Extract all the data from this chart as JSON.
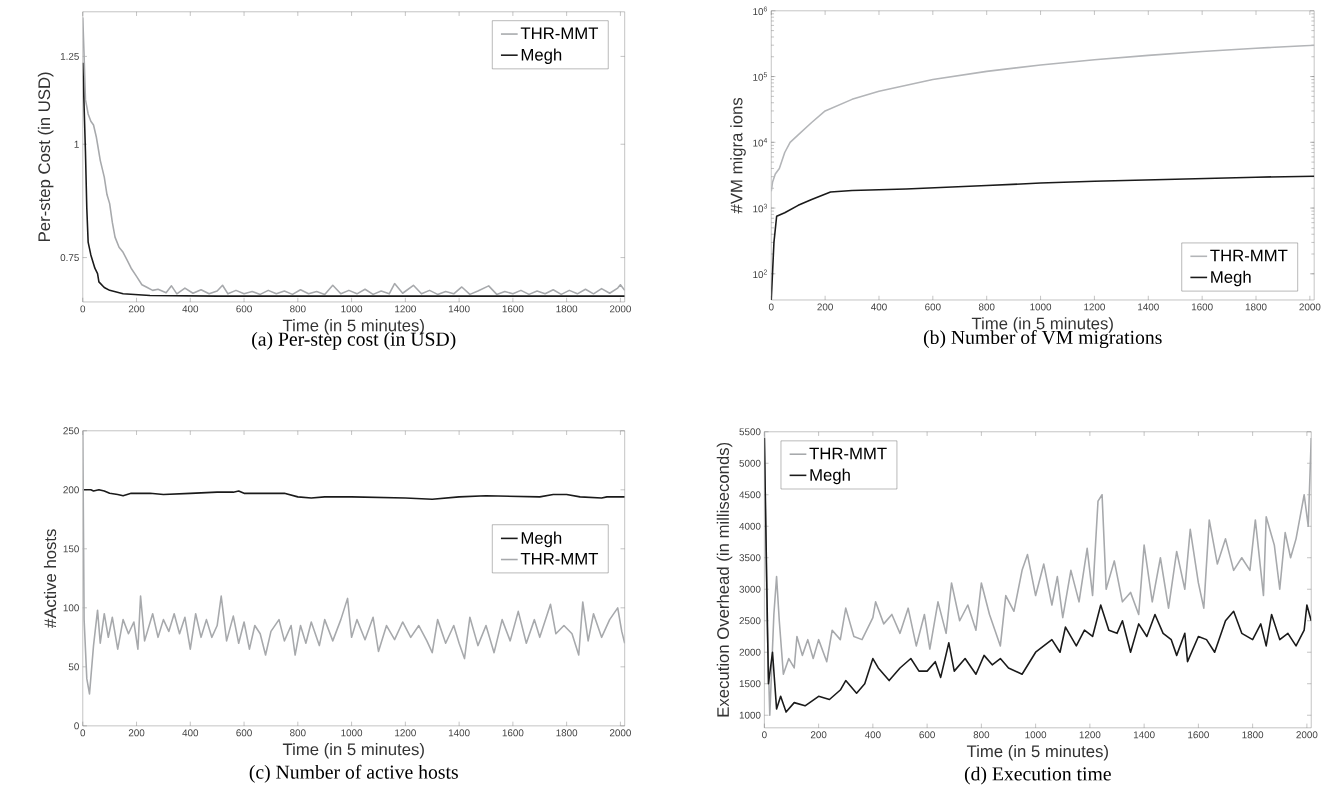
{
  "chart_data": [
    {
      "type": "line",
      "title": "(a) Per-step cost (in USD)",
      "xlabel": "Time (in 5 minutes)",
      "ylabel": "Per-step Cost (in USD)",
      "log": true,
      "legend": "top right",
      "xlim": [
        0,
        2016
      ],
      "ylim": [
        0.67,
        1.4
      ],
      "xticks": [
        0,
        200,
        400,
        600,
        800,
        1000,
        1200,
        1400,
        1600,
        1800,
        2000
      ],
      "yticks": [
        0.75,
        1,
        1.25
      ],
      "series": [
        {
          "name": "THR-MMT",
          "color": "#a7a9ac",
          "x": [
            0,
            5,
            10,
            20,
            30,
            40,
            50,
            55,
            65,
            80,
            90,
            100,
            110,
            120,
            135,
            150,
            165,
            180,
            200,
            220,
            240,
            260,
            280,
            310,
            330,
            350,
            380,
            410,
            440,
            470,
            500,
            520,
            540,
            570,
            600,
            630,
            660,
            690,
            720,
            750,
            780,
            810,
            840,
            870,
            900,
            930,
            960,
            990,
            1020,
            1050,
            1080,
            1110,
            1140,
            1160,
            1190,
            1230,
            1260,
            1290,
            1320,
            1350,
            1380,
            1410,
            1440,
            1470,
            1510,
            1540,
            1570,
            1600,
            1630,
            1660,
            1690,
            1720,
            1750,
            1780,
            1810,
            1840,
            1870,
            1900,
            1930,
            1960,
            1990,
            2000,
            2016
          ],
          "values": [
            1.38,
            1.25,
            1.12,
            1.08,
            1.06,
            1.05,
            1.02,
            1.0,
            0.96,
            0.92,
            0.88,
            0.86,
            0.82,
            0.79,
            0.77,
            0.76,
            0.745,
            0.73,
            0.715,
            0.7,
            0.695,
            0.69,
            0.692,
            0.686,
            0.698,
            0.684,
            0.694,
            0.685,
            0.691,
            0.684,
            0.689,
            0.699,
            0.684,
            0.69,
            0.684,
            0.688,
            0.683,
            0.69,
            0.684,
            0.689,
            0.683,
            0.691,
            0.684,
            0.688,
            0.683,
            0.699,
            0.684,
            0.69,
            0.684,
            0.692,
            0.683,
            0.689,
            0.684,
            0.702,
            0.685,
            0.699,
            0.684,
            0.69,
            0.683,
            0.688,
            0.684,
            0.696,
            0.683,
            0.689,
            0.698,
            0.683,
            0.688,
            0.684,
            0.69,
            0.683,
            0.689,
            0.684,
            0.691,
            0.683,
            0.69,
            0.684,
            0.692,
            0.684,
            0.693,
            0.685,
            0.694,
            0.7,
            0.69
          ]
        },
        {
          "name": "Megh",
          "color": "#1a1a1a",
          "x": [
            0,
            5,
            10,
            15,
            20,
            30,
            45,
            55,
            60,
            80,
            100,
            150,
            250,
            500,
            1000,
            1500,
            2016
          ],
          "values": [
            1.23,
            1.1,
            0.98,
            0.85,
            0.78,
            0.755,
            0.73,
            0.72,
            0.705,
            0.695,
            0.69,
            0.684,
            0.681,
            0.68,
            0.68,
            0.68,
            0.68
          ]
        }
      ]
    },
    {
      "type": "line",
      "title": "(b) Number of VM migrations",
      "xlabel": "Time (in 5 minutes)",
      "ylabel": "#VM migra ions",
      "log": true,
      "legend": "bottom right",
      "xlim": [
        0,
        2016
      ],
      "ylim": [
        40,
        1000000
      ],
      "xticks": [
        0,
        200,
        400,
        600,
        800,
        1000,
        1200,
        1400,
        1600,
        1800,
        2000
      ],
      "yticks": [
        {
          "value": 100,
          "label": "10$^{2}$"
        },
        {
          "value": 1000,
          "label": "10$^{3}$"
        },
        {
          "value": 10000,
          "label": "10$^{4}$"
        },
        {
          "value": 100000,
          "label": "10$^{5}$"
        },
        {
          "value": 1000000,
          "label": "10$^{6}$"
        }
      ],
      "series": [
        {
          "name": "THR-MMT",
          "color": "#b3b5b8",
          "x": [
            0,
            5,
            15,
            30,
            50,
            70,
            100,
            150,
            200,
            300,
            400,
            600,
            800,
            1000,
            1200,
            1400,
            1600,
            1800,
            2016
          ],
          "values": [
            1800,
            2500,
            3300,
            4000,
            7000,
            10000,
            13000,
            20000,
            30000,
            45000,
            60000,
            90000,
            120000,
            150000,
            180000,
            210000,
            240000,
            270000,
            300000
          ]
        },
        {
          "name": "Megh",
          "color": "#1a1a1a",
          "x": [
            0,
            10,
            20,
            50,
            100,
            150,
            220,
            300,
            500,
            800,
            1000,
            1200,
            1500,
            1800,
            2016
          ],
          "values": [
            40,
            300,
            750,
            850,
            1100,
            1350,
            1750,
            1850,
            1950,
            2200,
            2400,
            2550,
            2750,
            2950,
            3050
          ]
        }
      ]
    },
    {
      "type": "line",
      "title": "(c) Number of active hosts",
      "xlabel": "Time (in 5 minutes)",
      "ylabel": "#Active hosts",
      "legend": "right",
      "xlim": [
        0,
        2016
      ],
      "ylim": [
        0,
        250
      ],
      "xticks": [
        0,
        200,
        400,
        600,
        800,
        1000,
        1200,
        1400,
        1600,
        1800,
        2000
      ],
      "yticks": [
        0,
        50,
        100,
        150,
        200,
        250
      ],
      "series": [
        {
          "name": "Megh",
          "color": "#1a1a1a",
          "x": [
            0,
            30,
            40,
            60,
            80,
            100,
            130,
            150,
            180,
            250,
            300,
            400,
            500,
            560,
            580,
            600,
            750,
            800,
            850,
            900,
            1000,
            1200,
            1300,
            1400,
            1500,
            1700,
            1750,
            1800,
            1850,
            1930,
            1950,
            2016
          ],
          "values": [
            200,
            200,
            199,
            200,
            199,
            197,
            196,
            195,
            197,
            197,
            196,
            197,
            198,
            198,
            199,
            197,
            197,
            194,
            193,
            194,
            194,
            193,
            192,
            194,
            195,
            194,
            196,
            196,
            194,
            193,
            194,
            194
          ]
        },
        {
          "name": "THR-MMT",
          "color": "#a7a9ac",
          "x": [
            0,
            5,
            15,
            25,
            40,
            55,
            65,
            80,
            95,
            110,
            130,
            150,
            170,
            190,
            205,
            215,
            230,
            260,
            280,
            300,
            320,
            340,
            360,
            380,
            400,
            420,
            440,
            460,
            480,
            500,
            515,
            535,
            560,
            580,
            600,
            620,
            640,
            660,
            680,
            700,
            730,
            750,
            775,
            790,
            810,
            830,
            850,
            880,
            900,
            930,
            960,
            985,
            1000,
            1020,
            1050,
            1080,
            1100,
            1130,
            1160,
            1190,
            1220,
            1250,
            1280,
            1300,
            1320,
            1350,
            1380,
            1400,
            1420,
            1440,
            1470,
            1500,
            1530,
            1560,
            1590,
            1620,
            1650,
            1680,
            1700,
            1740,
            1760,
            1790,
            1820,
            1845,
            1860,
            1880,
            1900,
            1930,
            1960,
            1990,
            2005,
            2016
          ],
          "values": [
            250,
            90,
            40,
            27,
            68,
            98,
            70,
            95,
            75,
            92,
            65,
            90,
            78,
            88,
            65,
            110,
            72,
            95,
            75,
            90,
            80,
            95,
            78,
            92,
            65,
            95,
            75,
            90,
            75,
            85,
            110,
            72,
            93,
            70,
            88,
            65,
            85,
            78,
            60,
            80,
            90,
            72,
            85,
            60,
            85,
            70,
            88,
            68,
            90,
            72,
            90,
            108,
            75,
            90,
            73,
            92,
            63,
            85,
            73,
            88,
            75,
            85,
            72,
            62,
            90,
            70,
            85,
            70,
            57,
            92,
            68,
            85,
            62,
            90,
            72,
            97,
            70,
            90,
            75,
            103,
            78,
            85,
            78,
            60,
            105,
            72,
            95,
            75,
            90,
            100,
            80,
            70
          ]
        }
      ]
    },
    {
      "type": "line",
      "title": "(d) Execution time",
      "xlabel": "Time (in 5 minutes)",
      "ylabel": "Execution Overhead (in milliseconds)",
      "legend": "top left",
      "xlim": [
        0,
        2016
      ],
      "ylim": [
        800,
        5500
      ],
      "xticks": [
        0,
        200,
        400,
        600,
        800,
        1000,
        1200,
        1400,
        1600,
        1800,
        2000
      ],
      "yticks": [
        1000,
        1500,
        2000,
        2500,
        3000,
        3500,
        4000,
        4500,
        5000,
        5500
      ],
      "series": [
        {
          "name": "THR-MMT",
          "color": "#a7a9ac",
          "x": [
            0,
            10,
            20,
            35,
            45,
            55,
            70,
            90,
            110,
            120,
            140,
            160,
            180,
            200,
            230,
            250,
            280,
            300,
            330,
            360,
            400,
            410,
            440,
            470,
            500,
            530,
            560,
            590,
            610,
            640,
            670,
            690,
            720,
            750,
            780,
            800,
            830,
            870,
            890,
            920,
            950,
            970,
            1000,
            1030,
            1060,
            1080,
            1100,
            1130,
            1160,
            1190,
            1210,
            1230,
            1245,
            1260,
            1290,
            1320,
            1350,
            1380,
            1400,
            1430,
            1460,
            1490,
            1520,
            1550,
            1570,
            1600,
            1620,
            1640,
            1670,
            1700,
            1730,
            1760,
            1790,
            1810,
            1840,
            1850,
            1880,
            1900,
            1920,
            1940,
            1960,
            1990,
            2005,
            2016
          ],
          "values": [
            5500,
            2500,
            1000,
            2600,
            3200,
            2500,
            1650,
            1900,
            1750,
            2250,
            1950,
            2200,
            1900,
            2200,
            1850,
            2350,
            2200,
            2700,
            2250,
            2200,
            2550,
            2800,
            2450,
            2600,
            2300,
            2700,
            2100,
            2600,
            2050,
            2800,
            2300,
            3100,
            2500,
            2750,
            2350,
            3100,
            2600,
            2100,
            2900,
            2650,
            3300,
            3550,
            2900,
            3400,
            2750,
            3200,
            2550,
            3300,
            2800,
            3650,
            2900,
            4400,
            4500,
            3000,
            3450,
            2800,
            2950,
            2600,
            3700,
            2800,
            3500,
            2700,
            3600,
            3000,
            3950,
            3100,
            2700,
            4100,
            3400,
            3800,
            3300,
            3500,
            3300,
            4100,
            2900,
            4150,
            3700,
            3000,
            3900,
            3500,
            3800,
            4500,
            4000,
            5400
          ]
        },
        {
          "name": "Megh",
          "color": "#1a1a1a",
          "x": [
            0,
            15,
            30,
            45,
            60,
            80,
            110,
            150,
            200,
            240,
            280,
            300,
            340,
            370,
            400,
            420,
            460,
            500,
            540,
            570,
            600,
            630,
            650,
            680,
            700,
            740,
            780,
            810,
            840,
            870,
            900,
            950,
            1000,
            1030,
            1060,
            1090,
            1110,
            1150,
            1180,
            1210,
            1240,
            1270,
            1300,
            1320,
            1350,
            1380,
            1410,
            1440,
            1470,
            1500,
            1520,
            1550,
            1560,
            1600,
            1630,
            1660,
            1700,
            1730,
            1760,
            1800,
            1830,
            1850,
            1870,
            1900,
            1930,
            1960,
            1990,
            2000,
            2016
          ],
          "values": [
            5400,
            1500,
            2000,
            1100,
            1300,
            1050,
            1200,
            1150,
            1300,
            1250,
            1400,
            1550,
            1350,
            1500,
            1900,
            1750,
            1550,
            1750,
            1900,
            1700,
            1700,
            1850,
            1600,
            2150,
            1700,
            1900,
            1650,
            1950,
            1800,
            1900,
            1750,
            1650,
            2000,
            2100,
            2200,
            2000,
            2400,
            2100,
            2350,
            2250,
            2750,
            2350,
            2300,
            2500,
            2000,
            2450,
            2250,
            2600,
            2300,
            2200,
            1950,
            2300,
            1850,
            2250,
            2200,
            2000,
            2500,
            2650,
            2300,
            2200,
            2450,
            2100,
            2600,
            2200,
            2300,
            2100,
            2350,
            2750,
            2500
          ]
        }
      ]
    }
  ]
}
